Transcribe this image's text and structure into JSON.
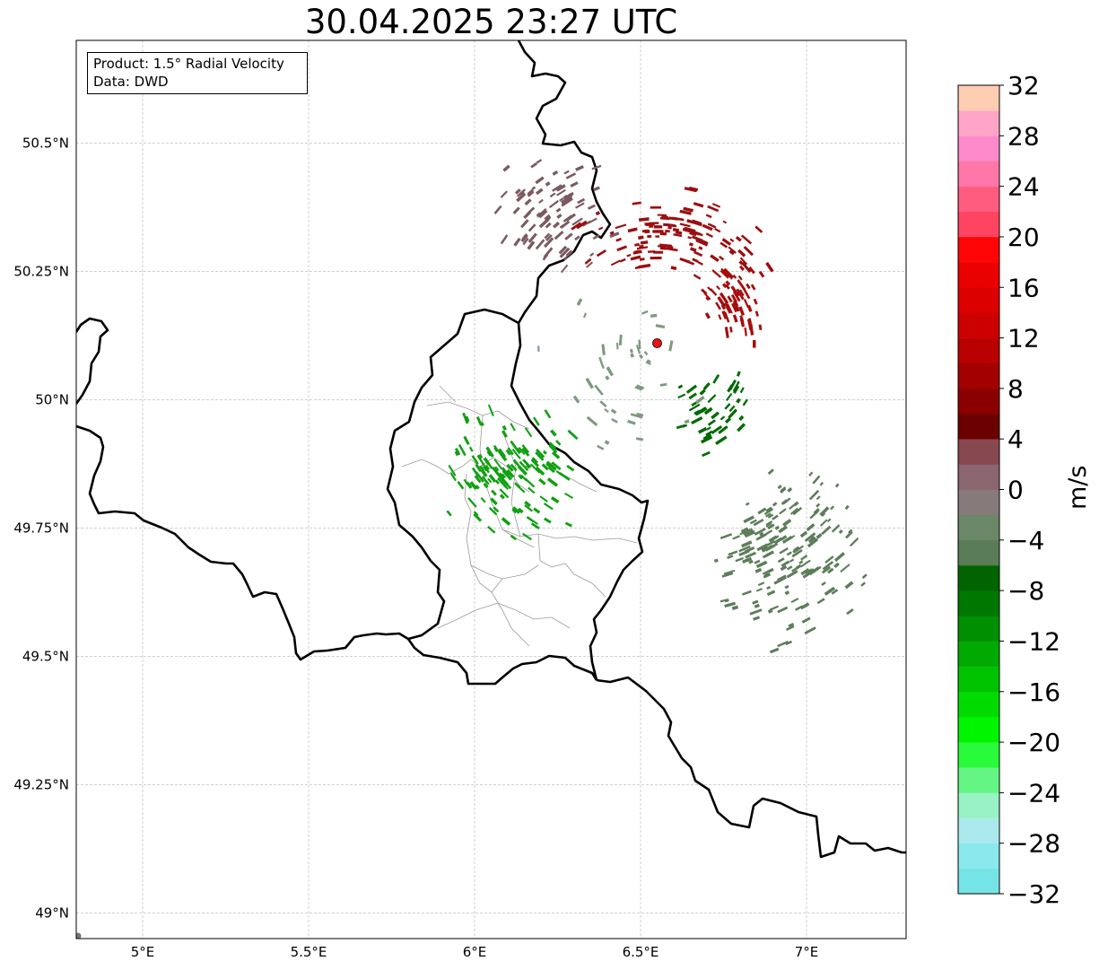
{
  "title": "30.04.2025 23:27 UTC",
  "info_box": {
    "product": "Product: 1.5° Radial Velocity",
    "source": "Data: DWD"
  },
  "map": {
    "lon_range": [
      4.8,
      7.3
    ],
    "lat_range": [
      48.95,
      50.7
    ],
    "lon_ticks": [
      5.0,
      5.5,
      6.0,
      6.5,
      7.0
    ],
    "lon_tick_labels": [
      "5°E",
      "5.5°E",
      "6°E",
      "6.5°E",
      "7°E"
    ],
    "lat_ticks": [
      49.0,
      49.25,
      49.5,
      49.75,
      50.0,
      50.25,
      50.5
    ],
    "lat_tick_labels": [
      "49°N",
      "49.25°N",
      "49.5°N",
      "49.75°N",
      "50°N",
      "50.25°N",
      "50.5°N"
    ],
    "gridlines": true,
    "radar_site": {
      "lon": 6.55,
      "lat": 50.11,
      "color": "#ee1111"
    },
    "echo_regions": [
      {
        "name": "outbound-northwest",
        "color": "#7a5a60",
        "center": [
          6.23,
          50.36
        ],
        "spread": [
          0.13,
          0.09
        ],
        "count": 90
      },
      {
        "name": "outbound-north",
        "color": "#9a0f10",
        "center": [
          6.62,
          50.32
        ],
        "spread": [
          0.22,
          0.07
        ],
        "count": 120
      },
      {
        "name": "outbound-northeast",
        "color": "#a50d0d",
        "center": [
          6.78,
          50.19
        ],
        "spread": [
          0.08,
          0.07
        ],
        "count": 60
      },
      {
        "name": "inbound-west",
        "color": "#10a010",
        "center": [
          6.1,
          49.85
        ],
        "spread": [
          0.17,
          0.1
        ],
        "count": 140
      },
      {
        "name": "inbound-center",
        "color": "#006a00",
        "center": [
          6.72,
          49.98
        ],
        "spread": [
          0.1,
          0.06
        ],
        "count": 45
      },
      {
        "name": "inbound-southeast",
        "color": "#5d7d5a",
        "center": [
          6.95,
          49.7
        ],
        "spread": [
          0.17,
          0.14
        ],
        "count": 170
      },
      {
        "name": "sparse-near-site",
        "color": "#7f9a7f",
        "center": [
          6.45,
          50.05
        ],
        "spread": [
          0.18,
          0.12
        ],
        "count": 40
      }
    ]
  },
  "colorbar": {
    "label": "m/s",
    "min": -32,
    "max": 32,
    "step": 4,
    "tick_labels": [
      "32",
      "28",
      "24",
      "20",
      "16",
      "12",
      "8",
      "4",
      "0",
      "−4",
      "−8",
      "−12",
      "−16",
      "−20",
      "−24",
      "−28",
      "−32"
    ],
    "colors": [
      "#74e4e6",
      "#89e9ec",
      "#aaeaed",
      "#98f2c4",
      "#64f584",
      "#29fb3a",
      "#00f500",
      "#00dc00",
      "#00c300",
      "#00aa00",
      "#008f00",
      "#007700",
      "#006400",
      "#5a7d57",
      "#6a8768",
      "#877a7a",
      "#8b6570",
      "#884850",
      "#6c0000",
      "#8a0000",
      "#a30000",
      "#b90000",
      "#cc0000",
      "#dc0000",
      "#ea0000",
      "#ff0505",
      "#ff4462",
      "#ff5c80",
      "#ff77a8",
      "#ff8acb",
      "#ffa6c8",
      "#ffcdb2"
    ]
  }
}
